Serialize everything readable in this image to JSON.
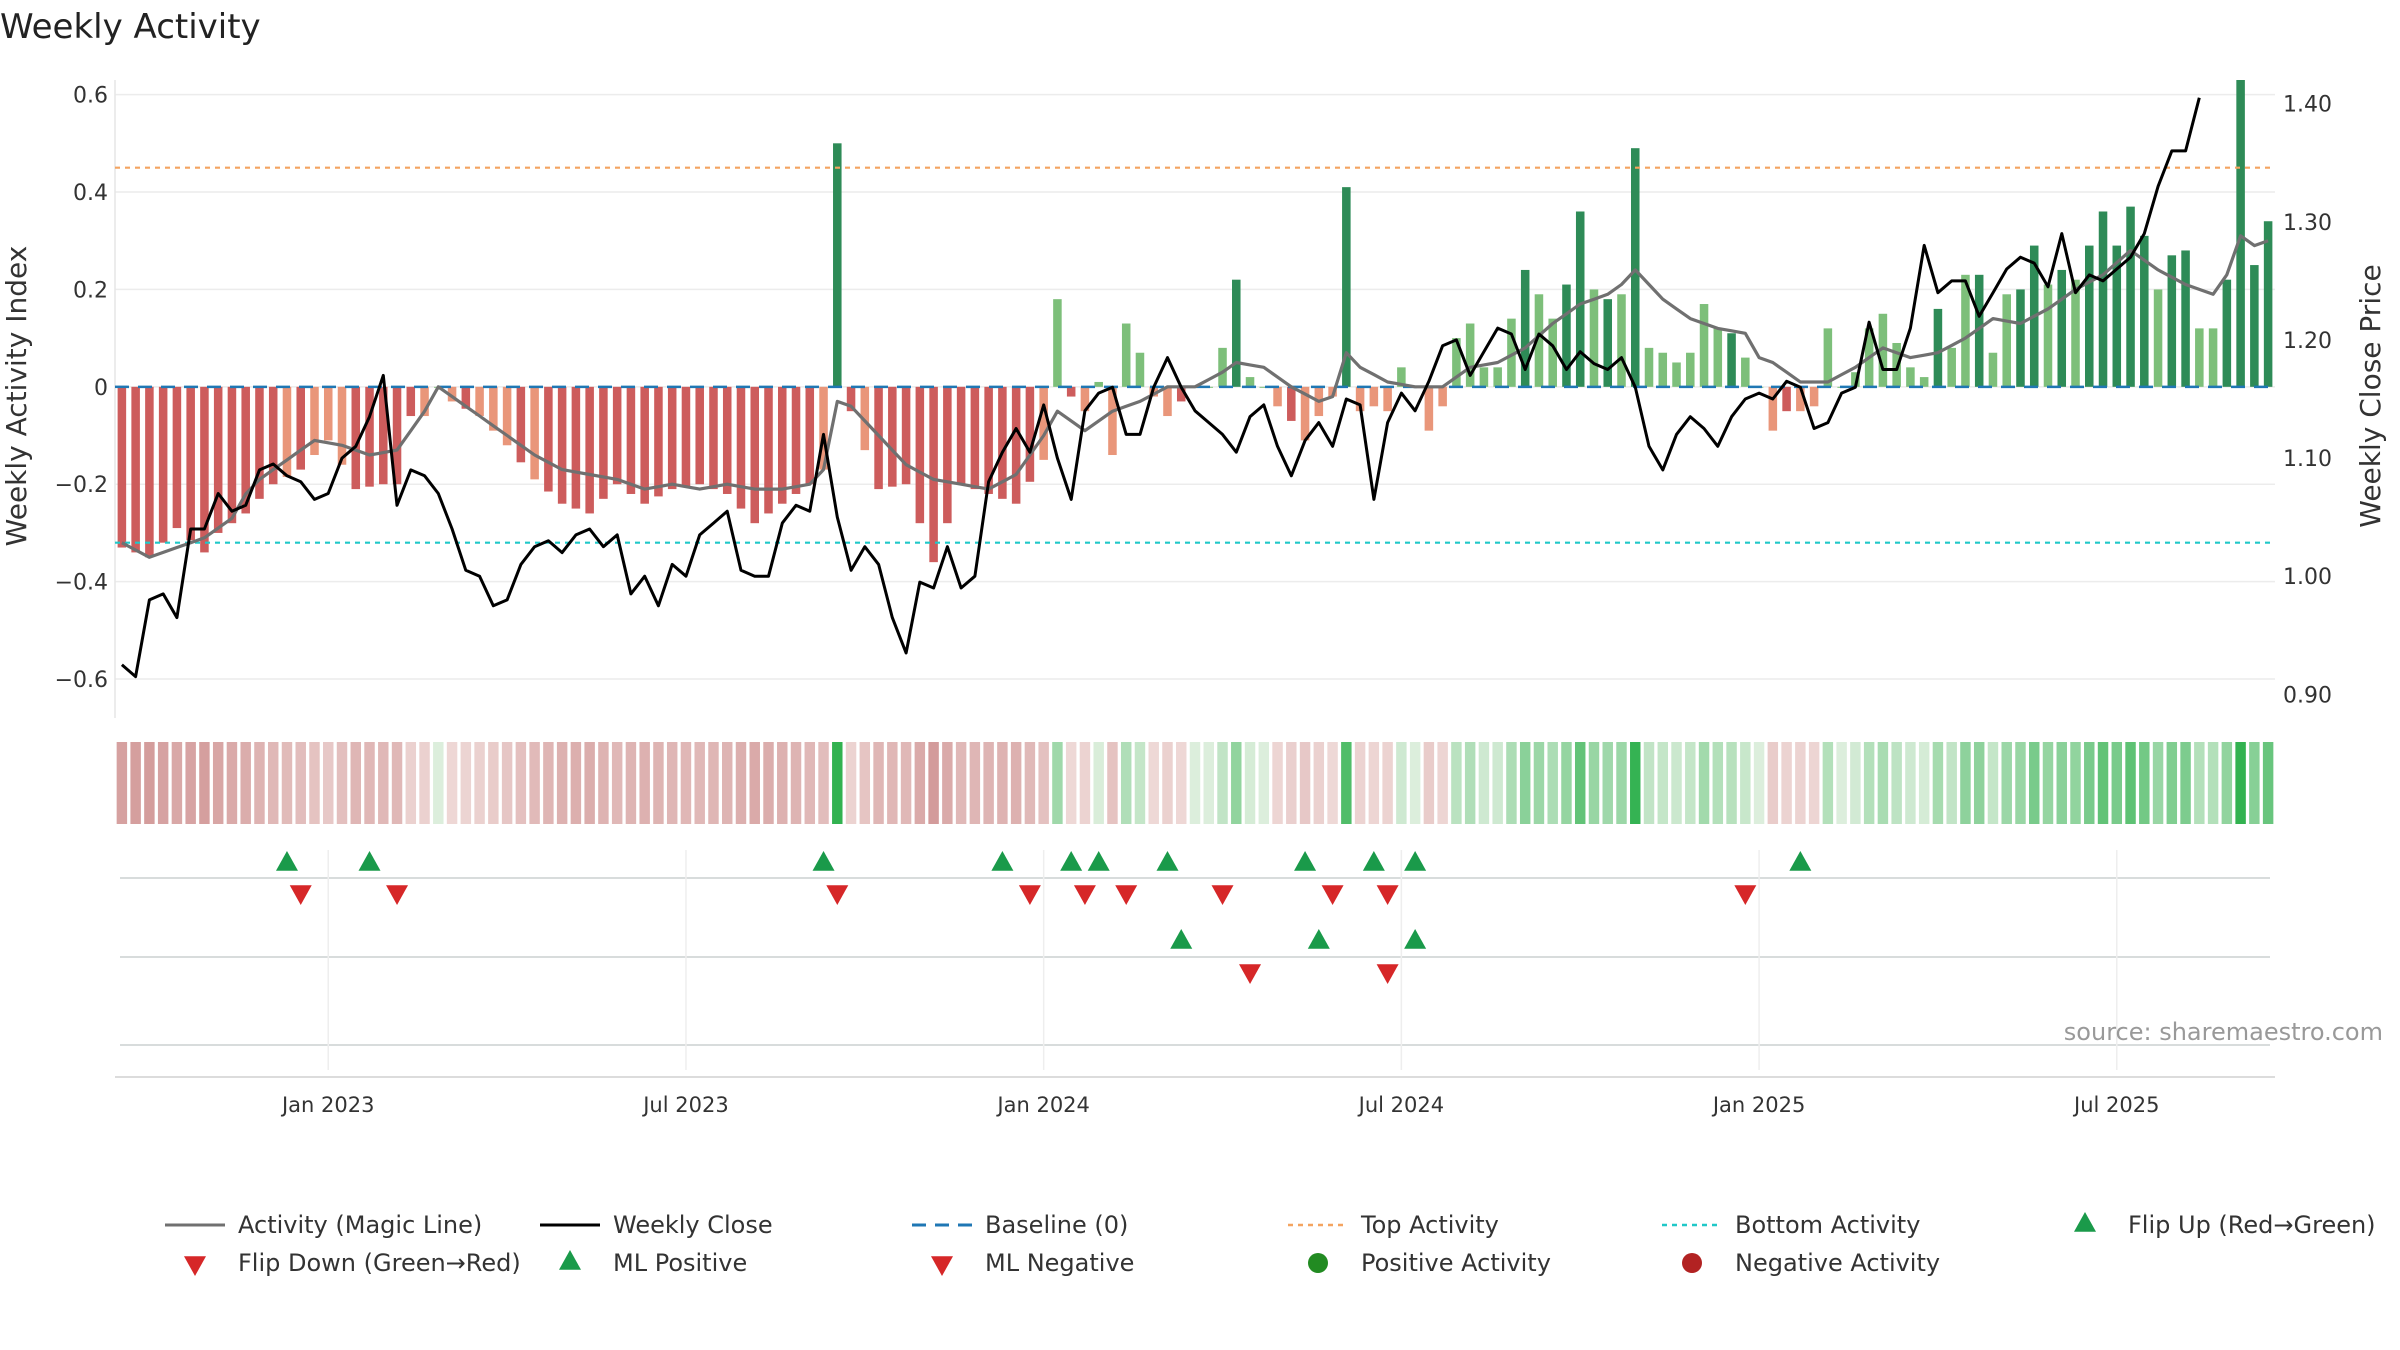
{
  "chart_data": {
    "type": "bar",
    "title": "Weekly Activity",
    "ylabel_left": "Weekly Activity Index",
    "ylabel_right": "Weekly Close Price",
    "ylim_left": [
      -0.68,
      0.63
    ],
    "ylim_right": [
      0.88,
      1.42
    ],
    "yticks_left": [
      {
        "value": 0.6,
        "label": "0.6"
      },
      {
        "value": 0.4,
        "label": "0.4"
      },
      {
        "value": 0.2,
        "label": "0.2"
      },
      {
        "value": 0,
        "label": "0"
      },
      {
        "value": -0.2,
        "label": "−0.2"
      },
      {
        "value": -0.4,
        "label": "−0.4"
      },
      {
        "value": -0.6,
        "label": "−0.6"
      }
    ],
    "yticks_right": [
      {
        "value": 1.4,
        "label": "1.40"
      },
      {
        "value": 1.3,
        "label": "1.30"
      },
      {
        "value": 1.2,
        "label": "1.20"
      },
      {
        "value": 1.1,
        "label": "1.10"
      },
      {
        "value": 1.0,
        "label": "1.00"
      },
      {
        "value": 0.9,
        "label": "0.90"
      }
    ],
    "x_start": "2022-09-26",
    "week_count": 157,
    "xticks": [
      {
        "index": 15,
        "label": "Jan 2023"
      },
      {
        "index": 41,
        "label": "Jul 2023"
      },
      {
        "index": 67,
        "label": "Jan 2024"
      },
      {
        "index": 93,
        "label": "Jul 2024"
      },
      {
        "index": 119,
        "label": "Jan 2025"
      },
      {
        "index": 145,
        "label": "Jul 2025"
      }
    ],
    "top_activity": 0.45,
    "bottom_activity": -0.32,
    "baseline": 0,
    "activity_keypoints": [
      [
        0,
        -0.33
      ],
      [
        2,
        -0.35
      ],
      [
        4,
        -0.29
      ],
      [
        6,
        -0.34
      ],
      [
        7,
        -0.3
      ],
      [
        9,
        -0.26
      ],
      [
        11,
        -0.2
      ],
      [
        13,
        -0.17
      ],
      [
        15,
        -0.11
      ],
      [
        17,
        -0.21
      ],
      [
        19,
        -0.2
      ],
      [
        20,
        -0.2
      ],
      [
        21,
        -0.06
      ],
      [
        22,
        -0.06
      ],
      [
        23,
        0.0
      ],
      [
        24,
        -0.03
      ],
      [
        26,
        -0.06
      ],
      [
        28,
        -0.12
      ],
      [
        30,
        -0.19
      ],
      [
        32,
        -0.24
      ],
      [
        34,
        -0.26
      ],
      [
        36,
        -0.2
      ],
      [
        38,
        -0.24
      ],
      [
        40,
        -0.21
      ],
      [
        42,
        -0.2
      ],
      [
        44,
        -0.22
      ],
      [
        46,
        -0.28
      ],
      [
        48,
        -0.24
      ],
      [
        50,
        -0.2
      ],
      [
        51,
        -0.17
      ],
      [
        52,
        0.5
      ],
      [
        53,
        -0.05
      ],
      [
        55,
        -0.21
      ],
      [
        57,
        -0.2
      ],
      [
        59,
        -0.36
      ],
      [
        61,
        -0.2
      ],
      [
        63,
        -0.22
      ],
      [
        65,
        -0.24
      ],
      [
        67,
        -0.15
      ],
      [
        68,
        0.18
      ],
      [
        69,
        -0.02
      ],
      [
        70,
        -0.05
      ],
      [
        71,
        0.01
      ],
      [
        72,
        -0.14
      ],
      [
        73,
        0.13
      ],
      [
        74,
        0.07
      ],
      [
        75,
        -0.02
      ],
      [
        76,
        -0.06
      ],
      [
        78,
        0.0
      ],
      [
        79,
        0.0
      ],
      [
        80,
        0.08
      ],
      [
        81,
        0.22
      ],
      [
        82,
        0.02
      ],
      [
        83,
        0.0
      ],
      [
        84,
        -0.04
      ],
      [
        85,
        -0.07
      ],
      [
        86,
        -0.11
      ],
      [
        87,
        -0.06
      ],
      [
        88,
        -0.02
      ],
      [
        89,
        0.41
      ],
      [
        90,
        -0.05
      ],
      [
        91,
        -0.04
      ],
      [
        92,
        -0.05
      ],
      [
        93,
        0.04
      ],
      [
        94,
        0.0
      ],
      [
        95,
        -0.09
      ],
      [
        96,
        -0.04
      ],
      [
        97,
        0.1
      ],
      [
        98,
        0.13
      ],
      [
        99,
        0.04
      ],
      [
        100,
        0.04
      ],
      [
        101,
        0.14
      ],
      [
        102,
        0.24
      ],
      [
        103,
        0.19
      ],
      [
        104,
        0.14
      ],
      [
        105,
        0.21
      ],
      [
        106,
        0.36
      ],
      [
        107,
        0.2
      ],
      [
        108,
        0.18
      ],
      [
        109,
        0.19
      ],
      [
        110,
        0.49
      ],
      [
        111,
        0.08
      ],
      [
        112,
        0.07
      ],
      [
        113,
        0.05
      ],
      [
        114,
        0.07
      ],
      [
        115,
        0.17
      ],
      [
        116,
        0.12
      ],
      [
        117,
        0.11
      ],
      [
        118,
        0.06
      ],
      [
        119,
        0.0
      ],
      [
        120,
        -0.09
      ],
      [
        121,
        -0.05
      ],
      [
        122,
        -0.05
      ],
      [
        123,
        -0.04
      ],
      [
        124,
        0.12
      ],
      [
        125,
        0.0
      ],
      [
        126,
        0.03
      ],
      [
        127,
        0.12
      ],
      [
        128,
        0.15
      ],
      [
        129,
        0.09
      ],
      [
        130,
        0.04
      ],
      [
        131,
        0.02
      ],
      [
        132,
        0.16
      ],
      [
        133,
        0.08
      ],
      [
        134,
        0.23
      ],
      [
        135,
        0.23
      ],
      [
        136,
        0.07
      ],
      [
        137,
        0.19
      ],
      [
        138,
        0.2
      ],
      [
        139,
        0.29
      ],
      [
        140,
        0.21
      ],
      [
        141,
        0.24
      ],
      [
        142,
        0.22
      ],
      [
        143,
        0.29
      ],
      [
        144,
        0.36
      ],
      [
        145,
        0.29
      ],
      [
        146,
        0.37
      ],
      [
        147,
        0.31
      ],
      [
        148,
        0.2
      ],
      [
        149,
        0.27
      ],
      [
        150,
        0.28
      ],
      [
        151,
        0.12
      ],
      [
        152,
        0.12
      ],
      [
        153,
        0.22
      ],
      [
        154,
        0.63
      ],
      [
        155,
        0.25
      ],
      [
        156,
        0.34
      ]
    ],
    "magic_line_keypoints": [
      [
        0,
        -0.32
      ],
      [
        2,
        -0.35
      ],
      [
        4,
        -0.33
      ],
      [
        6,
        -0.31
      ],
      [
        8,
        -0.27
      ],
      [
        9,
        -0.22
      ],
      [
        10,
        -0.19
      ],
      [
        12,
        -0.15
      ],
      [
        14,
        -0.11
      ],
      [
        16,
        -0.12
      ],
      [
        18,
        -0.14
      ],
      [
        20,
        -0.13
      ],
      [
        22,
        -0.05
      ],
      [
        23,
        0.0
      ],
      [
        24,
        -0.02
      ],
      [
        26,
        -0.06
      ],
      [
        28,
        -0.1
      ],
      [
        30,
        -0.14
      ],
      [
        32,
        -0.17
      ],
      [
        34,
        -0.18
      ],
      [
        36,
        -0.19
      ],
      [
        38,
        -0.21
      ],
      [
        40,
        -0.2
      ],
      [
        42,
        -0.21
      ],
      [
        44,
        -0.2
      ],
      [
        46,
        -0.21
      ],
      [
        48,
        -0.21
      ],
      [
        50,
        -0.2
      ],
      [
        51,
        -0.17
      ],
      [
        52,
        -0.03
      ],
      [
        53,
        -0.04
      ],
      [
        55,
        -0.1
      ],
      [
        57,
        -0.16
      ],
      [
        59,
        -0.19
      ],
      [
        61,
        -0.2
      ],
      [
        63,
        -0.21
      ],
      [
        65,
        -0.18
      ],
      [
        67,
        -0.1
      ],
      [
        68,
        -0.05
      ],
      [
        70,
        -0.09
      ],
      [
        72,
        -0.05
      ],
      [
        74,
        -0.03
      ],
      [
        76,
        0.0
      ],
      [
        78,
        0.0
      ],
      [
        80,
        0.03
      ],
      [
        81,
        0.05
      ],
      [
        83,
        0.04
      ],
      [
        85,
        0.0
      ],
      [
        87,
        -0.03
      ],
      [
        88,
        -0.02
      ],
      [
        89,
        0.07
      ],
      [
        90,
        0.04
      ],
      [
        92,
        0.01
      ],
      [
        94,
        0.0
      ],
      [
        96,
        0.0
      ],
      [
        98,
        0.04
      ],
      [
        100,
        0.05
      ],
      [
        102,
        0.08
      ],
      [
        104,
        0.13
      ],
      [
        106,
        0.17
      ],
      [
        108,
        0.19
      ],
      [
        109,
        0.21
      ],
      [
        110,
        0.24
      ],
      [
        111,
        0.21
      ],
      [
        112,
        0.18
      ],
      [
        114,
        0.14
      ],
      [
        116,
        0.12
      ],
      [
        118,
        0.11
      ],
      [
        119,
        0.06
      ],
      [
        120,
        0.05
      ],
      [
        122,
        0.01
      ],
      [
        124,
        0.01
      ],
      [
        126,
        0.04
      ],
      [
        128,
        0.08
      ],
      [
        130,
        0.06
      ],
      [
        132,
        0.07
      ],
      [
        134,
        0.1
      ],
      [
        136,
        0.14
      ],
      [
        138,
        0.13
      ],
      [
        140,
        0.16
      ],
      [
        142,
        0.2
      ],
      [
        144,
        0.23
      ],
      [
        146,
        0.28
      ],
      [
        148,
        0.24
      ],
      [
        150,
        0.21
      ],
      [
        152,
        0.19
      ],
      [
        153,
        0.23
      ],
      [
        154,
        0.31
      ],
      [
        155,
        0.29
      ],
      [
        156,
        0.3
      ]
    ],
    "close_keypoints": [
      [
        0,
        0.925
      ],
      [
        1,
        0.915
      ],
      [
        2,
        0.98
      ],
      [
        3,
        0.985
      ],
      [
        4,
        0.965
      ],
      [
        5,
        1.04
      ],
      [
        6,
        1.04
      ],
      [
        7,
        1.07
      ],
      [
        8,
        1.055
      ],
      [
        9,
        1.06
      ],
      [
        10,
        1.09
      ],
      [
        11,
        1.095
      ],
      [
        12,
        1.085
      ],
      [
        13,
        1.08
      ],
      [
        14,
        1.065
      ],
      [
        15,
        1.07
      ],
      [
        16,
        1.1
      ],
      [
        17,
        1.11
      ],
      [
        18,
        1.135
      ],
      [
        19,
        1.17
      ],
      [
        20,
        1.06
      ],
      [
        21,
        1.09
      ],
      [
        22,
        1.085
      ],
      [
        23,
        1.07
      ],
      [
        24,
        1.04
      ],
      [
        25,
        1.005
      ],
      [
        26,
        1.0
      ],
      [
        27,
        0.975
      ],
      [
        28,
        0.98
      ],
      [
        29,
        1.01
      ],
      [
        30,
        1.025
      ],
      [
        31,
        1.03
      ],
      [
        32,
        1.02
      ],
      [
        33,
        1.035
      ],
      [
        34,
        1.04
      ],
      [
        35,
        1.025
      ],
      [
        36,
        1.035
      ],
      [
        37,
        0.985
      ],
      [
        38,
        1.0
      ],
      [
        39,
        0.975
      ],
      [
        40,
        1.01
      ],
      [
        41,
        1.0
      ],
      [
        42,
        1.035
      ],
      [
        43,
        1.045
      ],
      [
        44,
        1.055
      ],
      [
        45,
        1.005
      ],
      [
        46,
        1.0
      ],
      [
        47,
        1.0
      ],
      [
        48,
        1.045
      ],
      [
        49,
        1.06
      ],
      [
        50,
        1.055
      ],
      [
        51,
        1.12
      ],
      [
        52,
        1.05
      ],
      [
        53,
        1.005
      ],
      [
        54,
        1.025
      ],
      [
        55,
        1.01
      ],
      [
        56,
        0.965
      ],
      [
        57,
        0.935
      ],
      [
        58,
        0.995
      ],
      [
        59,
        0.99
      ],
      [
        60,
        1.025
      ],
      [
        61,
        0.99
      ],
      [
        62,
        1.0
      ],
      [
        63,
        1.08
      ],
      [
        64,
        1.105
      ],
      [
        65,
        1.125
      ],
      [
        66,
        1.105
      ],
      [
        67,
        1.145
      ],
      [
        68,
        1.1
      ],
      [
        69,
        1.065
      ],
      [
        70,
        1.14
      ],
      [
        71,
        1.155
      ],
      [
        72,
        1.16
      ],
      [
        73,
        1.12
      ],
      [
        74,
        1.12
      ],
      [
        75,
        1.16
      ],
      [
        76,
        1.185
      ],
      [
        77,
        1.16
      ],
      [
        78,
        1.14
      ],
      [
        79,
        1.13
      ],
      [
        80,
        1.12
      ],
      [
        81,
        1.105
      ],
      [
        82,
        1.135
      ],
      [
        83,
        1.145
      ],
      [
        84,
        1.11
      ],
      [
        85,
        1.085
      ],
      [
        86,
        1.115
      ],
      [
        87,
        1.13
      ],
      [
        88,
        1.11
      ],
      [
        89,
        1.15
      ],
      [
        90,
        1.145
      ],
      [
        91,
        1.065
      ],
      [
        92,
        1.13
      ],
      [
        93,
        1.155
      ],
      [
        94,
        1.14
      ],
      [
        95,
        1.165
      ],
      [
        96,
        1.195
      ],
      [
        97,
        1.2
      ],
      [
        98,
        1.17
      ],
      [
        99,
        1.19
      ],
      [
        100,
        1.21
      ],
      [
        101,
        1.205
      ],
      [
        102,
        1.175
      ],
      [
        103,
        1.205
      ],
      [
        104,
        1.195
      ],
      [
        105,
        1.175
      ],
      [
        106,
        1.19
      ],
      [
        107,
        1.18
      ],
      [
        108,
        1.175
      ],
      [
        109,
        1.185
      ],
      [
        110,
        1.16
      ],
      [
        111,
        1.11
      ],
      [
        112,
        1.09
      ],
      [
        113,
        1.12
      ],
      [
        114,
        1.135
      ],
      [
        115,
        1.125
      ],
      [
        116,
        1.11
      ],
      [
        117,
        1.135
      ],
      [
        118,
        1.15
      ],
      [
        119,
        1.155
      ],
      [
        120,
        1.15
      ],
      [
        121,
        1.165
      ],
      [
        122,
        1.16
      ],
      [
        123,
        1.125
      ],
      [
        124,
        1.13
      ],
      [
        125,
        1.155
      ],
      [
        126,
        1.16
      ],
      [
        127,
        1.215
      ],
      [
        128,
        1.175
      ],
      [
        129,
        1.175
      ],
      [
        130,
        1.21
      ],
      [
        131,
        1.28
      ],
      [
        132,
        1.24
      ],
      [
        133,
        1.25
      ],
      [
        134,
        1.25
      ],
      [
        135,
        1.22
      ],
      [
        136,
        1.24
      ],
      [
        137,
        1.26
      ],
      [
        138,
        1.27
      ],
      [
        139,
        1.265
      ],
      [
        140,
        1.245
      ],
      [
        141,
        1.29
      ],
      [
        142,
        1.24
      ],
      [
        143,
        1.255
      ],
      [
        144,
        1.25
      ],
      [
        145,
        1.26
      ],
      [
        146,
        1.27
      ],
      [
        147,
        1.29
      ],
      [
        148,
        1.33
      ],
      [
        149,
        1.36
      ],
      [
        150,
        1.36
      ],
      [
        151,
        1.405
      ]
    ],
    "flip_up_weeks": [
      12,
      18,
      51,
      64,
      69,
      71,
      76,
      86,
      91,
      94,
      122
    ],
    "flip_down_weeks": [
      13,
      20,
      52,
      66,
      70,
      73,
      80,
      88,
      92,
      118
    ],
    "ml_positive_weeks": [
      77,
      87,
      94
    ],
    "ml_negative_weeks": [
      82,
      92
    ],
    "legend": [
      {
        "label": "Activity (Magic Line)",
        "marker": "line"
      },
      {
        "label": "Weekly Close",
        "marker": "line-black"
      },
      {
        "label": "Baseline (0)",
        "marker": "dash"
      },
      {
        "label": "Top Activity",
        "marker": "dotted-orange"
      },
      {
        "label": "Bottom Activity",
        "marker": "dotted-cyan"
      },
      {
        "label": "Flip Up (Red→Green)",
        "marker": "triangle-up"
      },
      {
        "label": "Flip Down (Green→Red)",
        "marker": "triangle-down"
      },
      {
        "label": "ML Positive",
        "marker": "triangle-up"
      },
      {
        "label": "ML Negative",
        "marker": "triangle-down"
      },
      {
        "label": "Positive Activity",
        "marker": "dot-green"
      },
      {
        "label": "Negative Activity",
        "marker": "dot-red"
      }
    ],
    "source": "source: sharemaestro.com"
  },
  "colors": {
    "pos_strong": "#2e8b57",
    "pos_light": "#7dbf7a",
    "neg_strong": "#cd5c5c",
    "neg_light": "#e9967a",
    "magic_line": "#707070",
    "close_line": "#000000",
    "baseline": "#1f77b4",
    "top": "#f4a460",
    "bottom": "#20c8c8",
    "marker_up": "#1a9a4a",
    "marker_down": "#d62728",
    "dot_pos": "#228b22",
    "dot_neg": "#b22222"
  }
}
